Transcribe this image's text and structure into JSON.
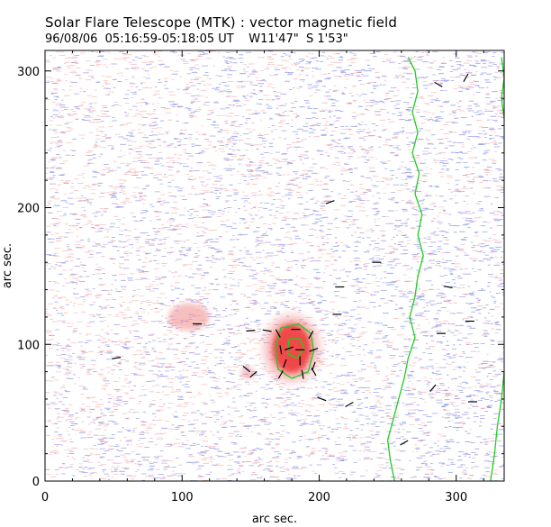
{
  "header": {
    "title": "Solar Flare Telescope (MTK) : vector magnetic field",
    "date": "96/08/06",
    "time_range": "05:16:59-05:18:05 UT",
    "coords": "W11'47\"  S 1'53\""
  },
  "chart_data": {
    "type": "scatter",
    "xlabel": "arc sec.",
    "ylabel": "arc sec.",
    "xlim": [
      0,
      335
    ],
    "ylim": [
      0,
      315
    ],
    "x_ticks": [
      0,
      100,
      200,
      300
    ],
    "y_ticks": [
      0,
      100,
      200,
      300
    ],
    "colors": {
      "negative_polarity": "#7d86e6",
      "positive_polarity": "#f08a8a",
      "spot_core": "#f03c3c",
      "neutral_line": "#22cc22",
      "vectors": "#000000"
    },
    "positive_regions": [
      {
        "x": 180,
        "y": 97,
        "rx": 14,
        "ry": 18,
        "strength": "strong"
      },
      {
        "x": 105,
        "y": 120,
        "rx": 15,
        "ry": 10,
        "strength": "weak"
      },
      {
        "x": 148,
        "y": 79,
        "rx": 5,
        "ry": 4,
        "strength": "weak"
      }
    ],
    "neutral_lines": [
      {
        "points": [
          [
            265,
            310
          ],
          [
            270,
            300
          ],
          [
            272,
            285
          ],
          [
            268,
            270
          ],
          [
            272,
            255
          ],
          [
            268,
            240
          ],
          [
            273,
            225
          ],
          [
            270,
            210
          ],
          [
            275,
            195
          ],
          [
            272,
            180
          ],
          [
            276,
            165
          ],
          [
            272,
            150
          ],
          [
            270,
            135
          ],
          [
            266,
            120
          ],
          [
            270,
            105
          ],
          [
            265,
            90
          ],
          [
            262,
            75
          ],
          [
            258,
            60
          ],
          [
            254,
            45
          ],
          [
            250,
            30
          ],
          [
            252,
            15
          ],
          [
            255,
            0
          ]
        ]
      },
      {
        "points": [
          [
            333,
            310
          ],
          [
            335,
            295
          ],
          [
            333,
            280
          ],
          [
            335,
            265
          ]
        ]
      },
      {
        "points": [
          [
            335,
            80
          ],
          [
            333,
            60
          ],
          [
            330,
            40
          ],
          [
            328,
            20
          ],
          [
            325,
            0
          ]
        ]
      },
      {
        "points": [
          [
            172,
            112
          ],
          [
            185,
            115
          ],
          [
            194,
            108
          ],
          [
            196,
            95
          ],
          [
            192,
            80
          ],
          [
            180,
            75
          ],
          [
            170,
            82
          ],
          [
            168,
            97
          ],
          [
            172,
            112
          ]
        ]
      },
      {
        "points": [
          [
            178,
            104
          ],
          [
            186,
            104
          ],
          [
            189,
            97
          ],
          [
            184,
            90
          ],
          [
            177,
            93
          ],
          [
            178,
            104
          ]
        ]
      }
    ],
    "vectors": [
      {
        "x": 52,
        "y": 90,
        "a": 10
      },
      {
        "x": 111,
        "y": 115,
        "a": 0
      },
      {
        "x": 150,
        "y": 110,
        "a": 5
      },
      {
        "x": 162,
        "y": 110,
        "a": -10
      },
      {
        "x": 170,
        "y": 108,
        "a": -60
      },
      {
        "x": 183,
        "y": 111,
        "a": 0
      },
      {
        "x": 194,
        "y": 107,
        "a": 60
      },
      {
        "x": 172,
        "y": 96,
        "a": -80
      },
      {
        "x": 178,
        "y": 97,
        "a": 20
      },
      {
        "x": 186,
        "y": 96,
        "a": 0
      },
      {
        "x": 196,
        "y": 96,
        "a": 20
      },
      {
        "x": 175,
        "y": 86,
        "a": 70
      },
      {
        "x": 186,
        "y": 88,
        "a": 90
      },
      {
        "x": 196,
        "y": 84,
        "a": 70
      },
      {
        "x": 172,
        "y": 78,
        "a": 60
      },
      {
        "x": 188,
        "y": 78,
        "a": 100
      },
      {
        "x": 196,
        "y": 80,
        "a": 120
      },
      {
        "x": 147,
        "y": 82,
        "a": -40
      },
      {
        "x": 152,
        "y": 78,
        "a": 40
      },
      {
        "x": 202,
        "y": 60,
        "a": -20
      },
      {
        "x": 222,
        "y": 56,
        "a": 30
      },
      {
        "x": 208,
        "y": 204,
        "a": 20
      },
      {
        "x": 215,
        "y": 142,
        "a": 0
      },
      {
        "x": 213,
        "y": 122,
        "a": 0
      },
      {
        "x": 242,
        "y": 160,
        "a": 0
      },
      {
        "x": 262,
        "y": 28,
        "a": 30
      },
      {
        "x": 283,
        "y": 68,
        "a": 50
      },
      {
        "x": 289,
        "y": 108,
        "a": 0
      },
      {
        "x": 294,
        "y": 142,
        "a": -10
      },
      {
        "x": 310,
        "y": 117,
        "a": 0
      },
      {
        "x": 312,
        "y": 58,
        "a": 0
      },
      {
        "x": 287,
        "y": 290,
        "a": -30
      },
      {
        "x": 307,
        "y": 295,
        "a": 60
      }
    ]
  }
}
